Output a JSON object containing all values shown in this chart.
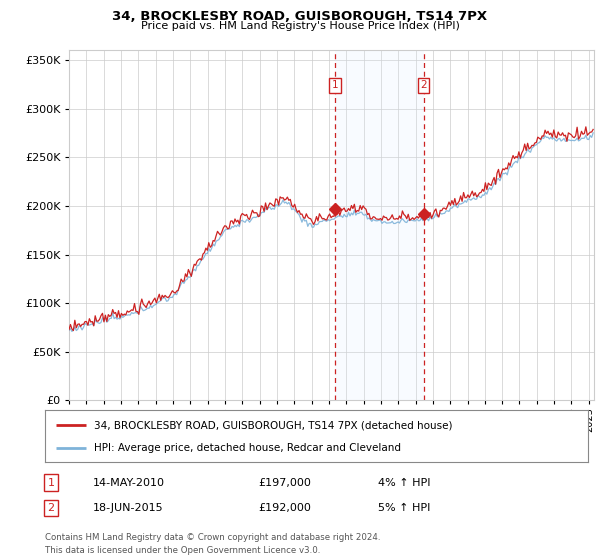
{
  "title": "34, BROCKLESBY ROAD, GUISBOROUGH, TS14 7PX",
  "subtitle": "Price paid vs. HM Land Registry's House Price Index (HPI)",
  "legend_line1": "34, BROCKLESBY ROAD, GUISBOROUGH, TS14 7PX (detached house)",
  "legend_line2": "HPI: Average price, detached house, Redcar and Cleveland",
  "sale1_date": "14-MAY-2010",
  "sale1_price": 197000,
  "sale1_hpi": "4% ↑ HPI",
  "sale2_date": "18-JUN-2015",
  "sale2_price": 192000,
  "sale2_hpi": "5% ↑ HPI",
  "footer": "Contains HM Land Registry data © Crown copyright and database right 2024.\nThis data is licensed under the Open Government Licence v3.0.",
  "sale1_x": 2010.37,
  "sale2_x": 2015.46,
  "ylim": [
    0,
    360000
  ],
  "yticks": [
    0,
    50000,
    100000,
    150000,
    200000,
    250000,
    300000,
    350000
  ],
  "hpi_color": "#7fb3d9",
  "price_color": "#cc2222",
  "shade_color": "#ddeeff",
  "vline_color": "#cc2222",
  "grid_color": "#cccccc",
  "bg_color": "#ffffff",
  "xmin": 1995,
  "xmax": 2025.3
}
